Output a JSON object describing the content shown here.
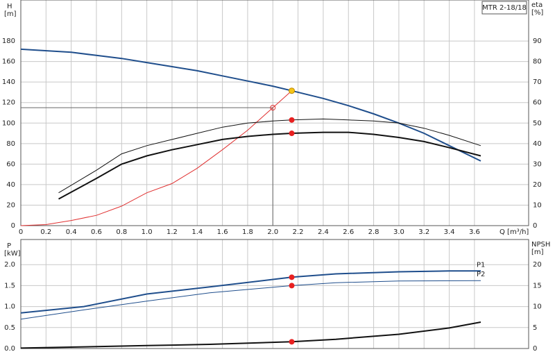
{
  "chart_data": [
    {
      "type": "line",
      "title": "MTR 2-18/18",
      "x_label": "Q [m³/h]",
      "y_label": "H",
      "y_unit": "[m]",
      "y2_label": "eta",
      "y2_unit": "[%]",
      "xlim": [
        0,
        4.03
      ],
      "ylim": [
        0,
        220
      ],
      "y2lim": [
        0,
        110
      ],
      "xticks": [
        0,
        0.2,
        0.4,
        0.6,
        0.8,
        {
          "value": 1,
          "label": "1.0"
        },
        1.2,
        1.4,
        1.6,
        1.8,
        {
          "value": 2,
          "label": "2.0"
        },
        2.2,
        2.4,
        2.6,
        2.8,
        {
          "value": 3,
          "label": "3.0"
        },
        3.2,
        3.4,
        3.6
      ],
      "yticks": [
        0,
        20,
        40,
        60,
        80,
        100,
        120,
        140,
        160,
        180
      ],
      "y2ticks": [
        0,
        10,
        20,
        30,
        40,
        50,
        60,
        70,
        80,
        90
      ],
      "grid": true,
      "duty_x": 2.15,
      "reference": {
        "x": 2.0,
        "y": 115,
        "color": "#e03030"
      },
      "series": [
        {
          "color": "#1f4e8c",
          "width": 2,
          "x": [
            0,
            0.4,
            0.6,
            0.8,
            1.0,
            1.2,
            1.4,
            1.6,
            1.8,
            2.0,
            2.15,
            2.4,
            2.6,
            2.8,
            3.0,
            3.2,
            3.4,
            3.65
          ],
          "values": [
            172,
            169,
            166,
            163,
            159,
            155,
            151,
            146,
            141,
            136,
            131.5,
            124,
            117,
            109,
            100,
            90,
            78,
            63
          ],
          "point": 131.5,
          "point_color": "#f5c518"
        },
        {
          "color": "#e03030",
          "width": 1,
          "x": [
            0,
            0.2,
            0.4,
            0.6,
            0.8,
            1.0,
            1.2,
            1.4,
            1.6,
            1.8,
            2.0,
            2.15
          ],
          "values": [
            0,
            1,
            5,
            10,
            19,
            32,
            41,
            56,
            74,
            93,
            115,
            131.5
          ]
        },
        {
          "color": "#111111",
          "width": 1,
          "axis": "y2",
          "x": [
            0.3,
            0.6,
            0.8,
            1.0,
            1.2,
            1.4,
            1.6,
            1.8,
            2.0,
            2.15,
            2.4,
            2.6,
            2.8,
            3.0,
            3.2,
            3.4,
            3.65
          ],
          "values": [
            16,
            27,
            35,
            39,
            42,
            45,
            48,
            50,
            51,
            51.5,
            52,
            51.5,
            51,
            50,
            47.5,
            44,
            39
          ],
          "point": 51.5,
          "point_color": "#e82020"
        },
        {
          "color": "#111111",
          "width": 2,
          "axis": "y2",
          "x": [
            0.3,
            0.6,
            0.8,
            1.0,
            1.2,
            1.4,
            1.6,
            1.8,
            2.0,
            2.15,
            2.4,
            2.6,
            2.8,
            3.0,
            3.2,
            3.4,
            3.65
          ],
          "values": [
            13,
            23,
            30,
            34,
            37,
            39.5,
            42,
            43.5,
            44.5,
            45,
            45.5,
            45.5,
            44.5,
            43,
            41,
            38,
            34
          ],
          "point": 45,
          "point_color": "#e82020"
        }
      ]
    },
    {
      "type": "line",
      "y_label": "P",
      "y_unit": "[kW]",
      "y2_label": "NPSH",
      "y2_unit": "[m]",
      "xlim": [
        0,
        4.03
      ],
      "ylim": [
        0,
        2.6
      ],
      "y2lim": [
        0,
        26
      ],
      "xgrid": [
        0.2,
        0.4,
        0.6,
        0.8,
        1,
        1.2,
        1.4,
        1.6,
        1.8,
        2,
        2.2,
        2.4,
        2.6,
        2.8,
        3,
        3.2,
        3.4,
        3.6
      ],
      "yticks": [
        {
          "value": 0,
          "label": "0.0"
        },
        0.5,
        {
          "value": 1,
          "label": "1.0"
        },
        1.5,
        {
          "value": 2,
          "label": "2.0"
        }
      ],
      "y2ticks": [
        0,
        5,
        10,
        15,
        20
      ],
      "grid": true,
      "duty_x": 2.15,
      "series": [
        {
          "name": "P1",
          "color": "#1f4e8c",
          "width": 2,
          "x": [
            0,
            0.5,
            1.0,
            1.5,
            2.15,
            2.5,
            3.0,
            3.4,
            3.65
          ],
          "values": [
            0.85,
            1.0,
            1.3,
            1.47,
            1.7,
            1.78,
            1.83,
            1.85,
            1.85
          ],
          "point": 1.7,
          "point_color": "#e82020"
        },
        {
          "name": "P2",
          "color": "#1f4e8c",
          "width": 1,
          "x": [
            0,
            0.5,
            1.0,
            1.5,
            2.15,
            2.5,
            3.0,
            3.65
          ],
          "values": [
            0.7,
            0.92,
            1.13,
            1.33,
            1.5,
            1.57,
            1.61,
            1.62
          ],
          "point": 1.5,
          "point_color": "#e82020"
        },
        {
          "color": "#111111",
          "width": 2,
          "axis": "y2",
          "x": [
            0,
            1.0,
            1.5,
            2.15,
            2.5,
            3.0,
            3.4,
            3.65
          ],
          "values": [
            0.1,
            0.7,
            1.0,
            1.6,
            2.2,
            3.4,
            4.9,
            6.3
          ],
          "point": 1.6,
          "point_color": "#e82020"
        }
      ]
    }
  ]
}
